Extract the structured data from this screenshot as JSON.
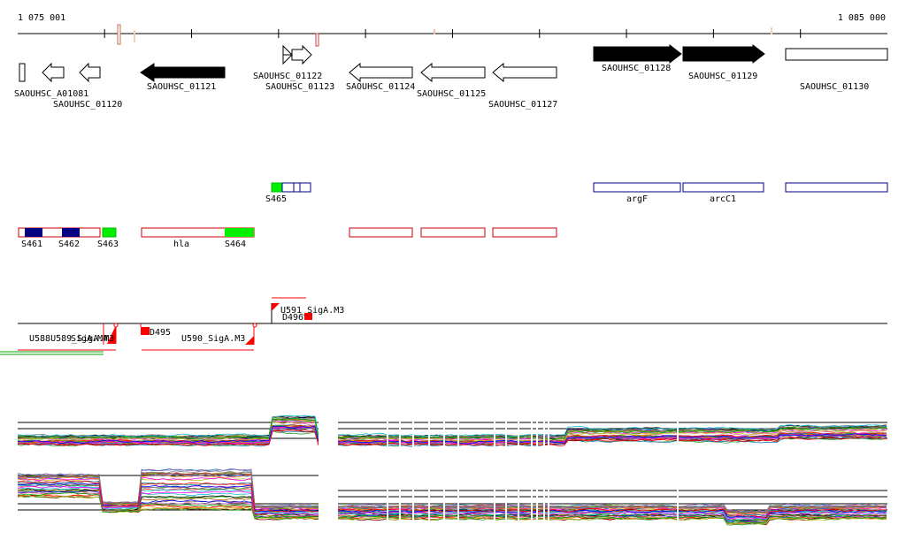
{
  "ruler": {
    "start_label": "1 075 001",
    "end_label": "1 085 000",
    "start": 1075001,
    "end": 1085000
  },
  "genes": [
    {
      "id": "SAOUHSC_A01081",
      "strand": "-",
      "fill": "#ffffff"
    },
    {
      "id": "SAOUHSC_01120",
      "strand": "-",
      "fill": "#ffffff"
    },
    {
      "id": "",
      "strand": "-",
      "fill": "#ffffff"
    },
    {
      "id": "SAOUHSC_01121",
      "strand": "-",
      "fill": "#000000"
    },
    {
      "id": "SAOUHSC_01122",
      "strand": "+",
      "fill": "#ffffff"
    },
    {
      "id": "SAOUHSC_01123",
      "strand": "+",
      "fill": "#ffffff"
    },
    {
      "id": "SAOUHSC_01124",
      "strand": "-",
      "fill": "#ffffff"
    },
    {
      "id": "SAOUHSC_01125",
      "strand": "-",
      "fill": "#ffffff"
    },
    {
      "id": "SAOUHSC_01127",
      "strand": "-",
      "fill": "#ffffff"
    },
    {
      "id": "SAOUHSC_01128",
      "strand": "+",
      "fill": "#000000"
    },
    {
      "id": "SAOUHSC_01129",
      "strand": "+",
      "fill": "#000000"
    },
    {
      "id": "SAOUHSC_01130",
      "strand": "+",
      "fill": "#ffffff"
    }
  ],
  "plus_features": [
    {
      "label": "S465"
    },
    {
      "label": "argF"
    },
    {
      "label": "arcC1"
    },
    {
      "label": ""
    }
  ],
  "minus_features": [
    {
      "label": "S461"
    },
    {
      "label": "S462"
    },
    {
      "label": "S463"
    },
    {
      "label": "hla"
    },
    {
      "label": "S464"
    },
    {
      "label": ""
    },
    {
      "label": ""
    },
    {
      "label": ""
    }
  ],
  "transcript_labels": [
    {
      "label": "U591_SigA.M3"
    },
    {
      "label": "D496"
    },
    {
      "label": "D495"
    },
    {
      "label": "U590_SigA.M3"
    },
    {
      "label": "U588U589_SigA.M3"
    },
    {
      "label": "SigA.M4"
    }
  ],
  "colors": {
    "gene_outline": "#000000",
    "feature_outline_plus": "#000080",
    "feature_outline_minus": "#cc0000",
    "feature_fill_green": "#00ee00",
    "feature_fill_navy": "#000080",
    "transcript": "#ff0000",
    "axis": "#000000"
  }
}
